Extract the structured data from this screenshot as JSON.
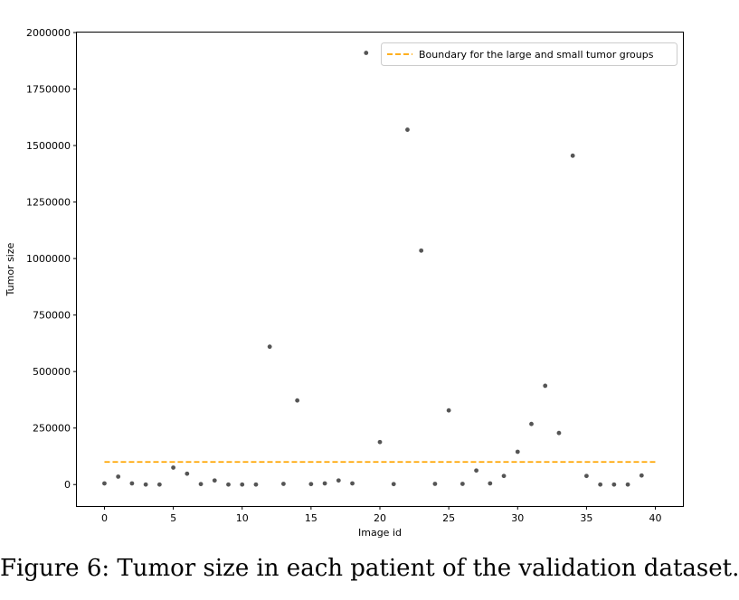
{
  "caption": "Figure 6: Tumor size in each patient of the validation dataset.",
  "chart_data": {
    "type": "scatter",
    "xlabel": "Image id",
    "ylabel": "Tumor size",
    "xlim": [
      -2,
      42
    ],
    "ylim": [
      -95000,
      2000000
    ],
    "xticks": [
      0,
      5,
      10,
      15,
      20,
      25,
      30,
      35,
      40
    ],
    "yticks": [
      0,
      250000,
      500000,
      750000,
      1000000,
      1250000,
      1500000,
      1750000,
      2000000
    ],
    "grid": false,
    "legend": "top-right",
    "series": [
      {
        "type": "scatter",
        "color": "#555555",
        "x": [
          0,
          1,
          2,
          3,
          4,
          5,
          6,
          7,
          8,
          9,
          10,
          11,
          12,
          13,
          14,
          15,
          16,
          17,
          18,
          19,
          20,
          21,
          22,
          23,
          24,
          25,
          26,
          27,
          28,
          29,
          30,
          31,
          32,
          33,
          34,
          35,
          36,
          37,
          38,
          39
        ],
        "y": [
          5000,
          35000,
          5000,
          0,
          0,
          75000,
          48000,
          2000,
          18000,
          0,
          0,
          0,
          610000,
          3000,
          372000,
          2000,
          5000,
          18000,
          5000,
          1910000,
          188000,
          2000,
          1570000,
          1035000,
          3000,
          328000,
          3000,
          62000,
          5000,
          38000,
          145000,
          268000,
          437000,
          228000,
          1455000,
          38000,
          0,
          0,
          0,
          40000
        ]
      },
      {
        "name": "Boundary for the large and small tumor groups",
        "type": "line",
        "style": "dashed",
        "color": "#ffa500",
        "x": [
          0,
          40
        ],
        "y": [
          100000,
          100000
        ]
      }
    ]
  }
}
